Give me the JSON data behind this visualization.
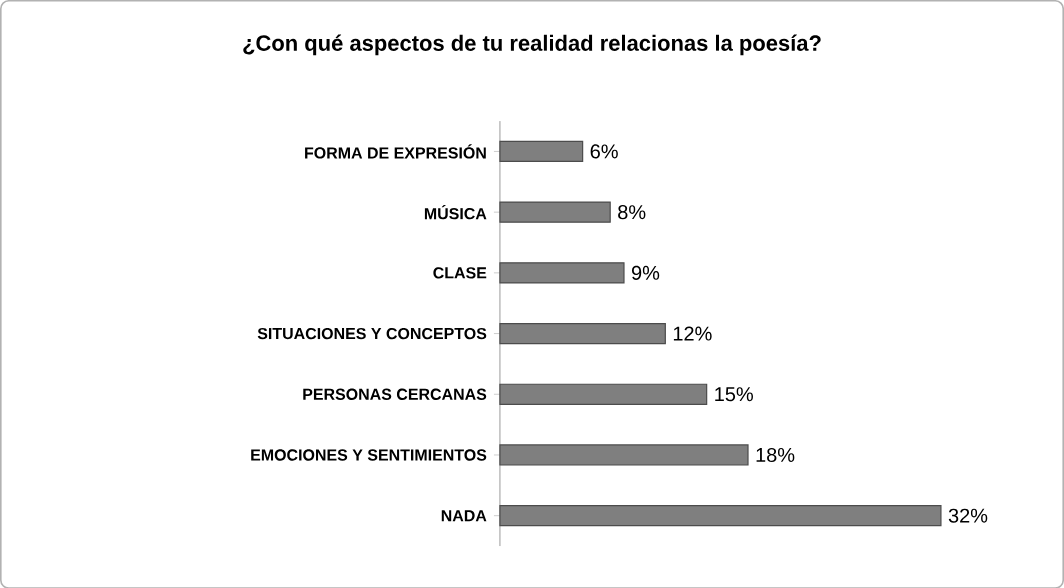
{
  "chart_data": {
    "type": "bar",
    "orientation": "horizontal",
    "title": "¿Con qué aspectos de tu realidad relacionas la poesía?",
    "categories": [
      "FORMA DE EXPRESIÓN",
      "MÚSICA",
      "CLASE",
      "SITUACIONES Y CONCEPTOS",
      "PERSONAS CERCANAS",
      "EMOCIONES Y SENTIMIENTOS",
      "NADA"
    ],
    "values": [
      6,
      8,
      9,
      12,
      15,
      18,
      32
    ],
    "value_labels": [
      "6%",
      "8%",
      "9%",
      "12%",
      "15%",
      "18%",
      "32%"
    ],
    "color": "#7f7f7f"
  }
}
